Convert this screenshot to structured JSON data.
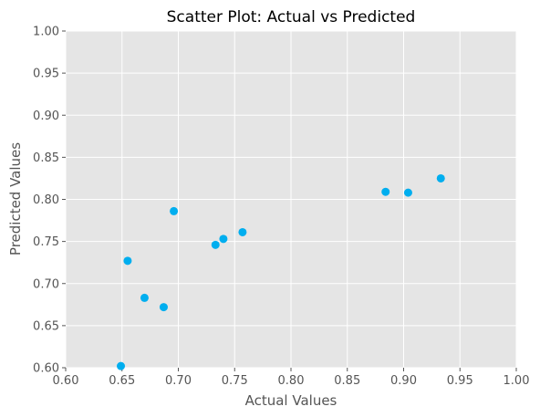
{
  "chart_data": {
    "type": "scatter",
    "title": "Scatter Plot: Actual vs Predicted",
    "xlabel": "Actual Values",
    "ylabel": "Predicted Values",
    "xlim": [
      0.6,
      1.0
    ],
    "ylim": [
      0.6,
      1.0
    ],
    "x_ticks": [
      "0.60",
      "0.65",
      "0.70",
      "0.75",
      "0.80",
      "0.85",
      "0.90",
      "0.95",
      "1.00"
    ],
    "y_ticks": [
      "0.60",
      "0.65",
      "0.70",
      "0.75",
      "0.80",
      "0.85",
      "0.90",
      "0.95",
      "1.00"
    ],
    "grid": true,
    "colors": {
      "background": "#e5e5e5",
      "point": "#00aeef",
      "grid": "#ffffff"
    },
    "points": [
      {
        "x": 0.649,
        "y": 0.602
      },
      {
        "x": 0.655,
        "y": 0.727
      },
      {
        "x": 0.67,
        "y": 0.683
      },
      {
        "x": 0.687,
        "y": 0.672
      },
      {
        "x": 0.696,
        "y": 0.786
      },
      {
        "x": 0.733,
        "y": 0.746
      },
      {
        "x": 0.74,
        "y": 0.753
      },
      {
        "x": 0.757,
        "y": 0.761
      },
      {
        "x": 0.884,
        "y": 0.809
      },
      {
        "x": 0.904,
        "y": 0.808
      },
      {
        "x": 0.933,
        "y": 0.825
      }
    ]
  }
}
